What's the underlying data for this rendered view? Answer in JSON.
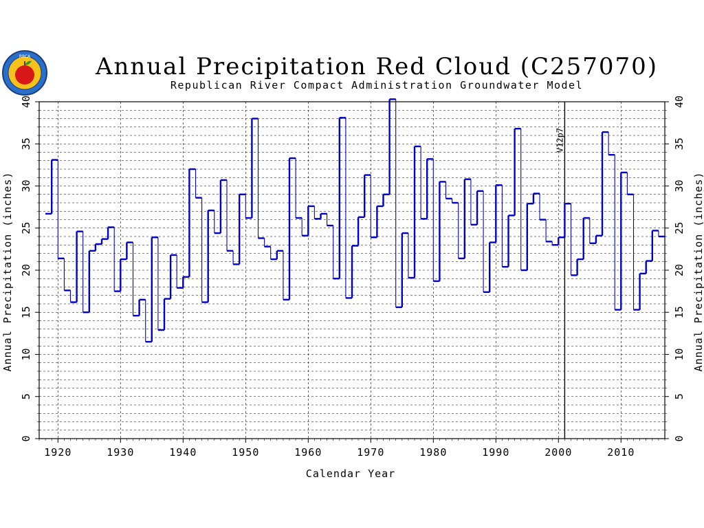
{
  "chart_data": {
    "type": "step-line",
    "title": "Annual Precipitation Red Cloud (C257070)",
    "subtitle": "Republican River Compact Administration Groundwater Model",
    "xlabel": "Calendar Year",
    "ylabel": "Annual Precipitation (inches)",
    "ylabel_right": "Annual Precipitation (inches)",
    "xlim": [
      1917,
      2017
    ],
    "ylim": [
      0,
      40
    ],
    "x_ticks": [
      1920,
      1930,
      1940,
      1950,
      1960,
      1970,
      1980,
      1990,
      2000,
      2010
    ],
    "y_ticks": [
      0,
      5,
      10,
      15,
      20,
      25,
      30,
      35,
      40
    ],
    "grid": true,
    "vertical_marker": {
      "x": 2001,
      "label": "V12p7"
    },
    "series": [
      {
        "color": "#0000c8",
        "years": [
          1918,
          1919,
          1920,
          1921,
          1922,
          1923,
          1924,
          1925,
          1926,
          1927,
          1928,
          1929,
          1930,
          1931,
          1932,
          1933,
          1934,
          1935,
          1936,
          1937,
          1938,
          1939,
          1940,
          1941,
          1942,
          1943,
          1944,
          1945,
          1946,
          1947,
          1948,
          1949,
          1950,
          1951,
          1952,
          1953,
          1954,
          1955,
          1956,
          1957,
          1958,
          1959,
          1960,
          1961,
          1962,
          1963,
          1964,
          1965,
          1966,
          1967,
          1968,
          1969,
          1970,
          1971,
          1972,
          1973,
          1974,
          1975,
          1976,
          1977,
          1978,
          1979,
          1980,
          1981,
          1982,
          1983,
          1984,
          1985,
          1986,
          1987,
          1988,
          1989,
          1990,
          1991,
          1992,
          1993,
          1994,
          1995,
          1996,
          1997,
          1998,
          1999,
          2000,
          2001,
          2002,
          2003,
          2004,
          2005,
          2006,
          2007,
          2008,
          2009,
          2010,
          2011,
          2012,
          2013,
          2014,
          2015,
          2016
        ],
        "values": [
          26.7,
          33.1,
          21.4,
          17.6,
          16.2,
          24.6,
          15.0,
          22.3,
          23.1,
          23.7,
          25.1,
          17.5,
          21.3,
          23.3,
          14.6,
          16.5,
          11.5,
          23.9,
          12.9,
          16.6,
          21.8,
          17.9,
          19.2,
          32.0,
          28.6,
          16.2,
          27.1,
          24.4,
          30.7,
          22.3,
          20.7,
          29.0,
          26.2,
          38.0,
          23.8,
          22.8,
          21.3,
          22.3,
          16.5,
          33.3,
          26.2,
          24.1,
          27.6,
          26.1,
          26.7,
          25.3,
          19.0,
          38.1,
          16.7,
          22.9,
          26.3,
          31.3,
          23.9,
          27.6,
          29.0,
          40.3,
          15.6,
          24.4,
          19.1,
          34.7,
          26.1,
          33.2,
          18.7,
          30.5,
          28.5,
          28.0,
          21.4,
          30.8,
          25.4,
          29.4,
          17.4,
          23.3,
          30.1,
          20.4,
          26.5,
          36.8,
          20.0,
          27.9,
          29.1,
          26.0,
          23.4,
          23.0,
          23.9,
          27.9,
          19.4,
          21.3,
          26.2,
          23.2,
          24.1,
          36.4,
          33.7,
          15.3,
          31.6,
          29.0,
          15.3,
          19.6,
          21.1,
          24.7,
          24.0
        ]
      }
    ]
  },
  "logo": {
    "icon": "apple-seal-icon",
    "text": "RRCA"
  }
}
